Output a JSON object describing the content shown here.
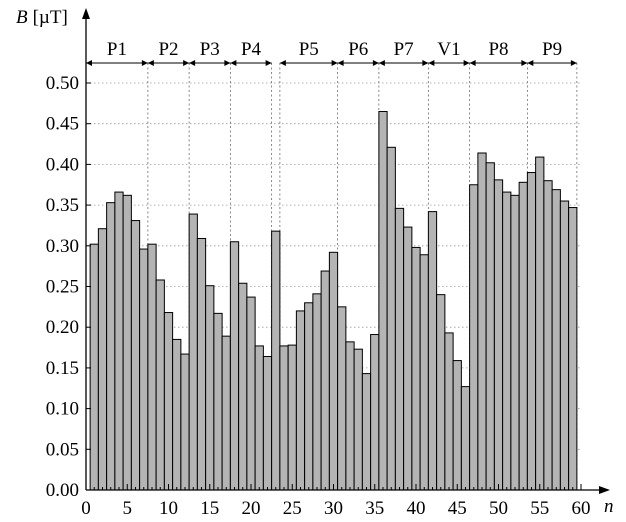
{
  "chart_data": {
    "type": "bar",
    "title": "",
    "xlabel": "n",
    "ylabel": "B",
    "ylabel_unit": "[µT]",
    "xlim": [
      0,
      60
    ],
    "ylim": [
      0,
      0.5
    ],
    "x_ticks": [
      0,
      5,
      10,
      15,
      20,
      25,
      30,
      35,
      40,
      45,
      50,
      55,
      60
    ],
    "y_ticks": [
      "0.00",
      "0.05",
      "0.10",
      "0.15",
      "0.20",
      "0.25",
      "0.30",
      "0.35",
      "0.40",
      "0.45",
      "0.50"
    ],
    "grid": true,
    "bar_color": "#b4b4b4",
    "x": [
      1,
      2,
      3,
      4,
      5,
      6,
      7,
      8,
      9,
      10,
      11,
      12,
      13,
      14,
      15,
      16,
      17,
      18,
      19,
      20,
      21,
      22,
      23,
      24,
      25,
      26,
      27,
      28,
      29,
      30,
      31,
      32,
      33,
      34,
      35,
      36,
      37,
      38,
      39,
      40,
      41,
      42,
      43,
      44,
      45,
      46,
      47,
      48,
      49,
      50,
      51,
      52,
      53,
      54,
      55,
      56,
      57,
      58,
      59
    ],
    "values": [
      0.302,
      0.321,
      0.353,
      0.366,
      0.362,
      0.331,
      0.296,
      0.302,
      0.258,
      0.218,
      0.185,
      0.167,
      0.339,
      0.309,
      0.251,
      0.217,
      0.189,
      0.305,
      0.254,
      0.237,
      0.177,
      0.164,
      0.318,
      0.177,
      0.178,
      0.22,
      0.23,
      0.241,
      0.269,
      0.292,
      0.225,
      0.182,
      0.173,
      0.143,
      0.191,
      0.465,
      0.421,
      0.346,
      0.323,
      0.298,
      0.289,
      0.342,
      0.24,
      0.193,
      0.159,
      0.127,
      0.375,
      0.414,
      0.402,
      0.381,
      0.366,
      0.362,
      0.378,
      0.39,
      0.409,
      0.38,
      0.369,
      0.355,
      0.347
    ],
    "regions": [
      {
        "label": "P1",
        "start": 0,
        "end": 7.5
      },
      {
        "label": "P2",
        "start": 7.5,
        "end": 12.5
      },
      {
        "label": "P3",
        "start": 12.5,
        "end": 17.5
      },
      {
        "label": "P4",
        "start": 17.5,
        "end": 22.5
      },
      {
        "label": "P5",
        "start": 23.5,
        "end": 30.5
      },
      {
        "label": "P6",
        "start": 30.5,
        "end": 35.5
      },
      {
        "label": "P7",
        "start": 35.5,
        "end": 41.5
      },
      {
        "label": "V1",
        "start": 41.5,
        "end": 46.5
      },
      {
        "label": "P8",
        "start": 46.5,
        "end": 53.5
      },
      {
        "label": "P9",
        "start": 53.5,
        "end": 59.5
      }
    ]
  }
}
